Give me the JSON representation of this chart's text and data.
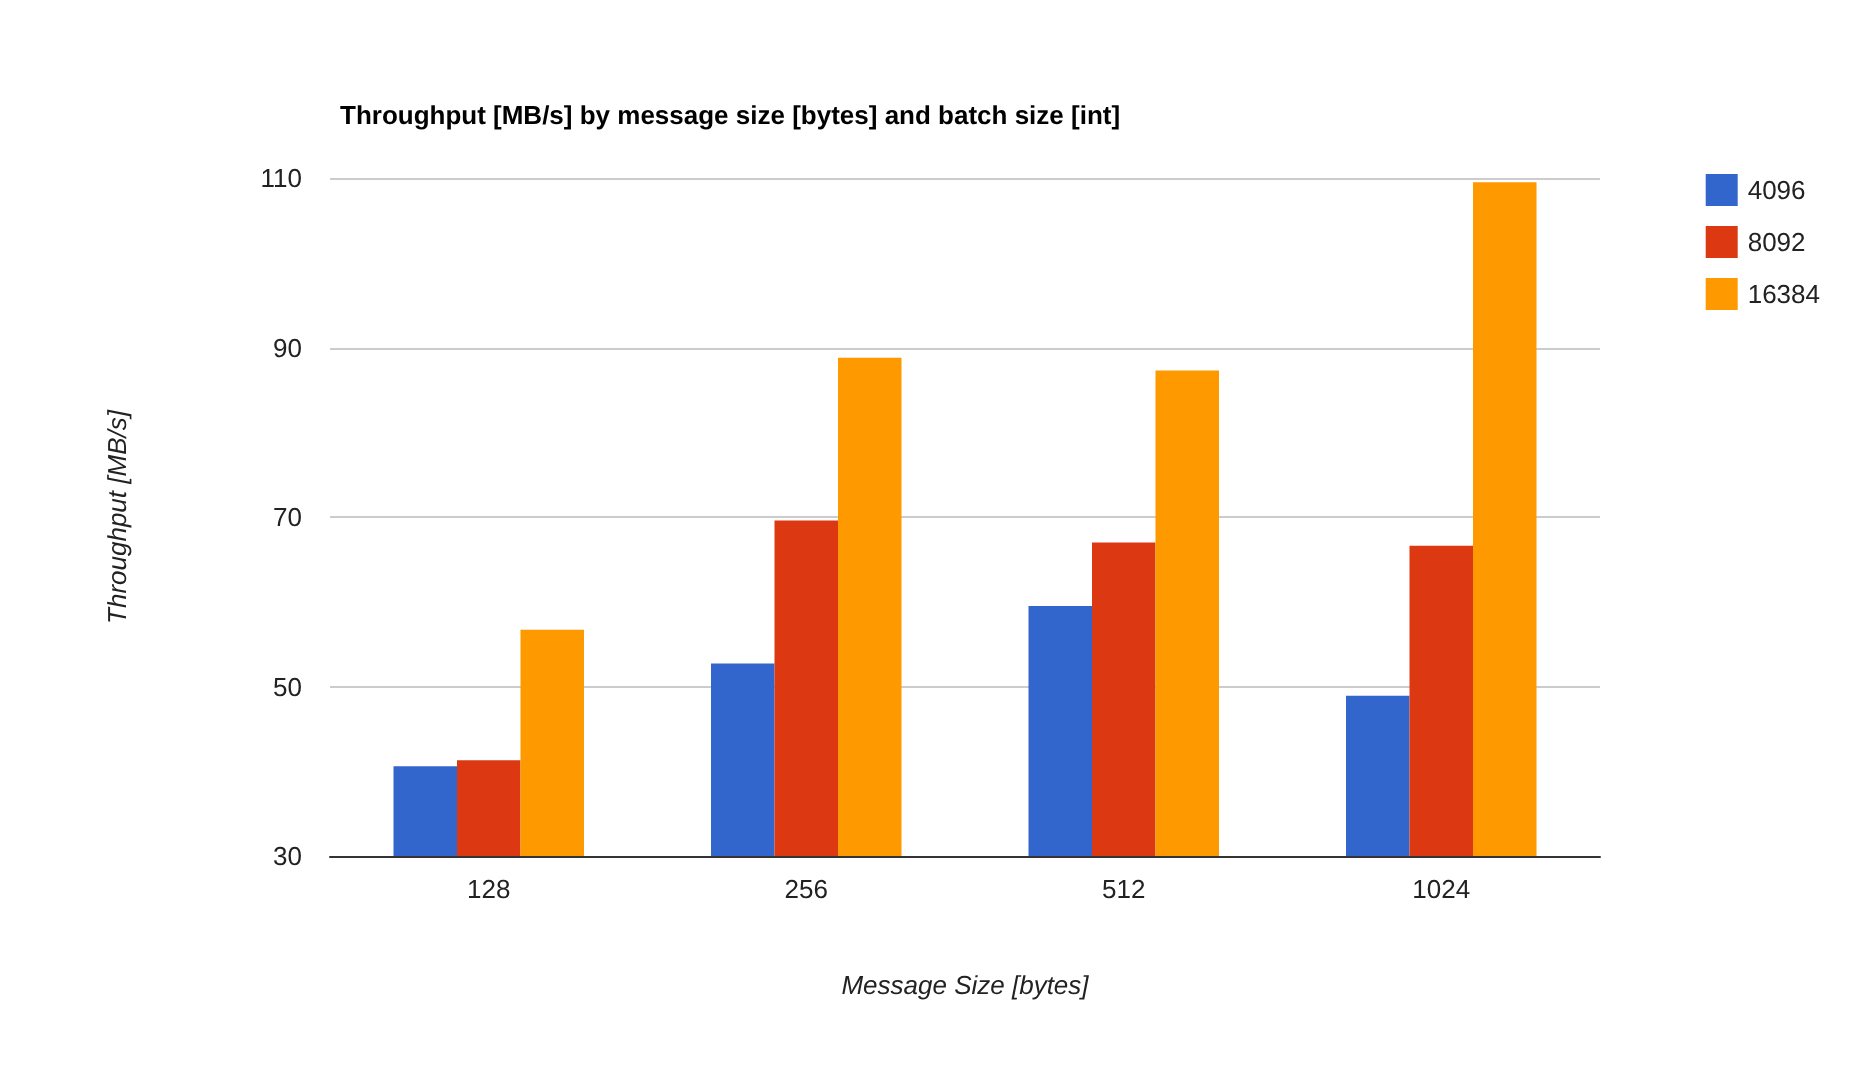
{
  "chart_data": {
    "type": "bar",
    "title": "Throughput [MB/s] by message size [bytes] and batch size [int]",
    "xlabel": "Message Size [bytes]",
    "ylabel": "Throughput [MB/s]",
    "categories": [
      "128",
      "256",
      "512",
      "1024"
    ],
    "series": [
      {
        "name": "4096",
        "color": "#3366cc",
        "values": [
          40.6,
          52.7,
          59.5,
          48.9
        ]
      },
      {
        "name": "8092",
        "color": "#dc3912",
        "values": [
          41.3,
          69.6,
          67.0,
          66.6
        ]
      },
      {
        "name": "16384",
        "color": "#ff9900",
        "values": [
          56.7,
          88.8,
          87.3,
          109.5
        ]
      }
    ],
    "ylim": [
      30,
      110
    ],
    "yticks": [
      30,
      50,
      70,
      90,
      110
    ],
    "grid": "y",
    "legend": "right"
  }
}
